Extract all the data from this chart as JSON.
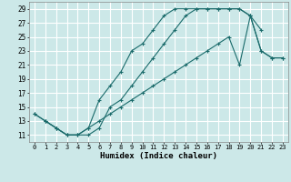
{
  "xlabel": "Humidex (Indice chaleur)",
  "bg_color": "#cce8e8",
  "grid_color": "#ffffff",
  "line_color": "#1a6b6b",
  "xlim": [
    -0.5,
    23.5
  ],
  "ylim": [
    10.0,
    30.0
  ],
  "xticks": [
    0,
    1,
    2,
    3,
    4,
    5,
    6,
    7,
    8,
    9,
    10,
    11,
    12,
    13,
    14,
    15,
    16,
    17,
    18,
    19,
    20,
    21,
    22,
    23
  ],
  "yticks": [
    11,
    13,
    15,
    17,
    19,
    21,
    23,
    25,
    27,
    29
  ],
  "line1_x": [
    0,
    1,
    2,
    3,
    4,
    5,
    6,
    7,
    8,
    9,
    10,
    11,
    12,
    13,
    14,
    15,
    16,
    17,
    18,
    19,
    20,
    21
  ],
  "line1_y": [
    14,
    13,
    12,
    11,
    11,
    12,
    16,
    18,
    20,
    23,
    24,
    26,
    28,
    29,
    29,
    29,
    29,
    29,
    29,
    29,
    28,
    26
  ],
  "line2_x": [
    1,
    2,
    3,
    4,
    5,
    6,
    7,
    8,
    9,
    10,
    11,
    12,
    13,
    14,
    15,
    16,
    17,
    18,
    19,
    20,
    21,
    22,
    23
  ],
  "line2_y": [
    13,
    12,
    11,
    11,
    11,
    12,
    15,
    16,
    18,
    20,
    22,
    24,
    26,
    28,
    29,
    29,
    29,
    29,
    29,
    28,
    23,
    22,
    22
  ],
  "line3_x": [
    0,
    1,
    2,
    3,
    4,
    5,
    6,
    7,
    8,
    9,
    10,
    11,
    12,
    13,
    14,
    15,
    16,
    17,
    18,
    19,
    20,
    21,
    22,
    23
  ],
  "line3_y": [
    14,
    13,
    12,
    11,
    11,
    12,
    13,
    14,
    15,
    16,
    17,
    18,
    19,
    20,
    21,
    22,
    23,
    24,
    25,
    21,
    28,
    23,
    22,
    22
  ]
}
